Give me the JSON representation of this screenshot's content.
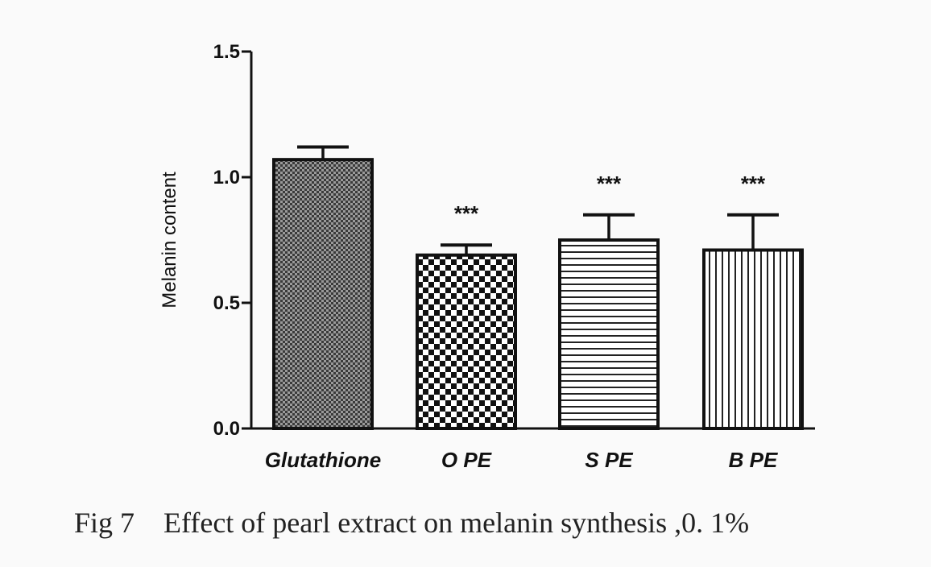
{
  "caption": "Fig 7    Effect of pearl extract on melanin synthesis ,0. 1%",
  "chart_data": {
    "type": "bar",
    "ylabel": "Melanin content",
    "xlabel": "",
    "ylim": [
      0,
      1.5
    ],
    "yticks": [
      0.0,
      0.5,
      1.0,
      1.5
    ],
    "ytick_labels": [
      "0.0",
      "0.5",
      "1.0",
      "1.5"
    ],
    "categories": [
      "Glutathione",
      "O PE",
      "S PE",
      "B PE"
    ],
    "values": [
      1.07,
      0.69,
      0.75,
      0.71
    ],
    "error_upper": [
      0.05,
      0.04,
      0.1,
      0.14
    ],
    "patterns": [
      "dense-crosshatch",
      "checkerboard",
      "horizontal-lines",
      "vertical-lines"
    ],
    "significance": [
      "",
      "***",
      "***",
      "***"
    ],
    "grid": false,
    "legend": "none"
  }
}
